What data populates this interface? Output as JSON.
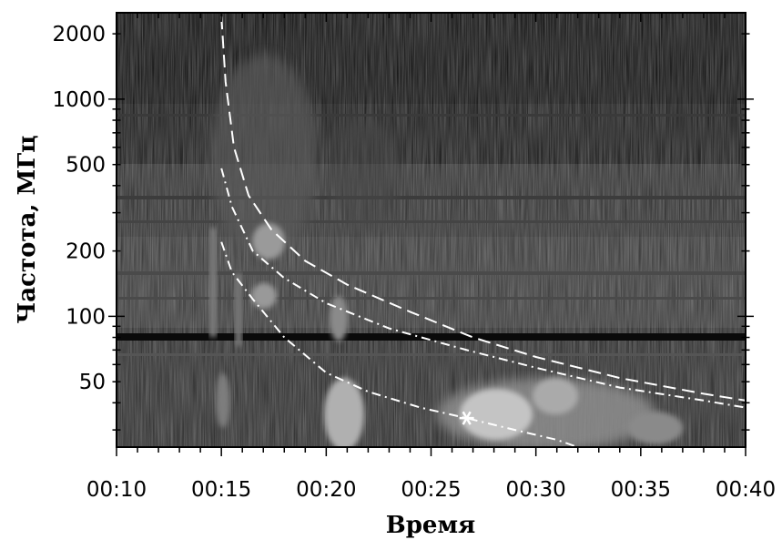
{
  "chart_data": {
    "type": "heatmap",
    "title": "",
    "xlabel": "Время",
    "ylabel": "Частота,  МГц",
    "x_range": [
      "00:10",
      "00:40"
    ],
    "x_ticks": [
      "00:10",
      "00:15",
      "00:20",
      "00:25",
      "00:30",
      "00:35",
      "00:40"
    ],
    "y_scale": "log",
    "y_range": [
      25,
      2500
    ],
    "y_ticks": [
      2000,
      1000,
      500,
      200,
      100,
      50
    ],
    "y_tick_labels": [
      "2000",
      "1000",
      "500",
      "200",
      "100",
      "50"
    ],
    "colormap": "grayscale",
    "series": [
      {
        "style": "dashed",
        "color": "#ffffff",
        "points": [
          [
            15.0,
            2400
          ],
          [
            15.2,
            1200
          ],
          [
            15.6,
            600
          ],
          [
            16.3,
            360
          ],
          [
            17.4,
            250
          ],
          [
            19.0,
            180
          ],
          [
            21.0,
            140
          ],
          [
            24.0,
            105
          ],
          [
            27.0,
            80
          ],
          [
            30.0,
            65
          ],
          [
            34.0,
            52
          ],
          [
            38.0,
            44
          ],
          [
            40.0,
            41
          ]
        ]
      },
      {
        "style": "dash-dot",
        "color": "#ffffff",
        "points": [
          [
            15.0,
            480
          ],
          [
            15.5,
            320
          ],
          [
            16.5,
            200
          ],
          [
            18.0,
            150
          ],
          [
            20.0,
            115
          ],
          [
            23.0,
            88
          ],
          [
            26.7,
            70
          ],
          [
            30.0,
            58
          ],
          [
            34.0,
            47
          ],
          [
            38.0,
            41
          ],
          [
            40.0,
            38
          ]
        ]
      },
      {
        "style": "dash-dot",
        "color": "#ffffff",
        "points": [
          [
            15.0,
            220
          ],
          [
            15.5,
            160
          ],
          [
            16.5,
            120
          ],
          [
            18.0,
            80
          ],
          [
            20.0,
            55
          ],
          [
            22.0,
            45
          ],
          [
            24.5,
            38
          ],
          [
            26.7,
            34
          ],
          [
            29.0,
            30
          ],
          [
            31.0,
            27
          ],
          [
            32.0,
            25
          ]
        ]
      }
    ],
    "marker": {
      "symbol": "asterisk",
      "time_min": 26.7,
      "freq": 34,
      "color": "#ffffff"
    }
  }
}
